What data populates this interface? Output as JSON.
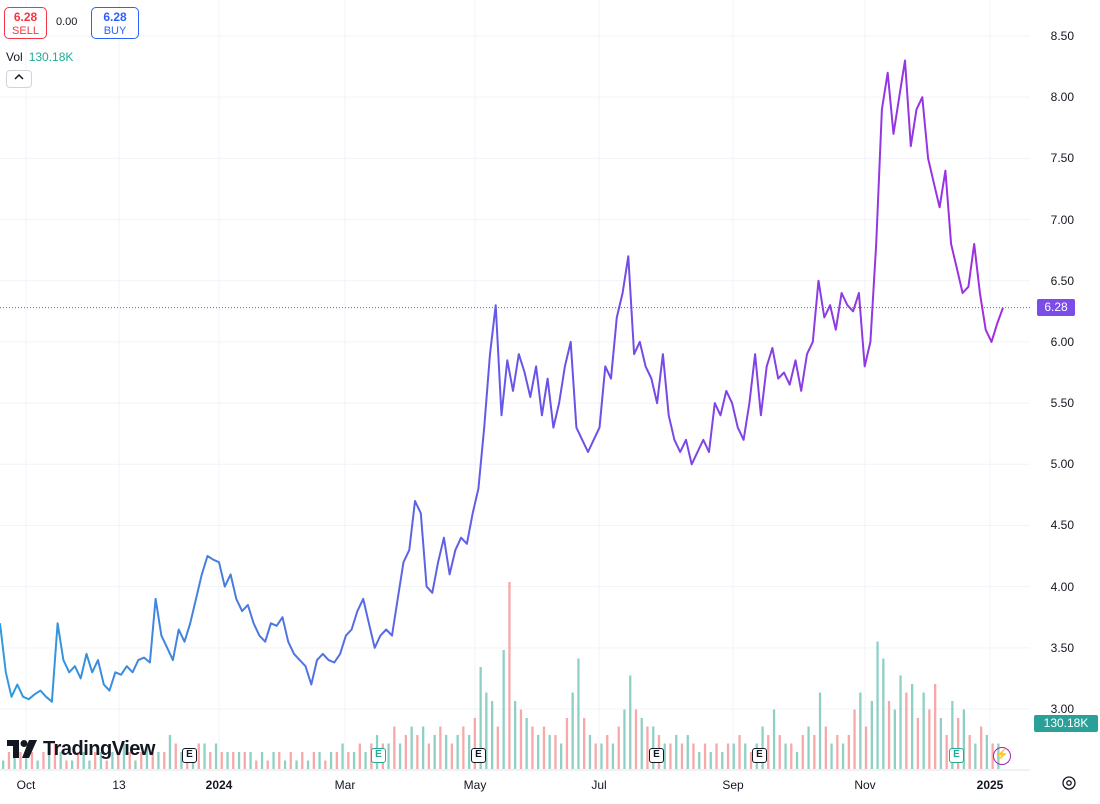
{
  "header": {
    "sell_price": "6.28",
    "sell_label": "SELL",
    "spread": "0.00",
    "buy_price": "6.28",
    "buy_label": "BUY"
  },
  "volume_legend": {
    "label": "Vol",
    "value": "130.18K"
  },
  "collapse_icon": "chevron-up-icon",
  "price_axis": {
    "ticks": [
      "8.50",
      "8.00",
      "7.50",
      "7.00",
      "6.50",
      "6.00",
      "5.50",
      "5.00",
      "4.50",
      "4.00",
      "3.50",
      "3.00"
    ]
  },
  "last_price_label": "6.28",
  "volume_label": "130.18K",
  "time_axis": {
    "ticks": [
      "Oct",
      "13",
      "2024",
      "Mar",
      "May",
      "Jul",
      "Sep",
      "Nov",
      "2025"
    ],
    "bold": [
      "2024",
      "2025"
    ]
  },
  "logo": {
    "text": "TradingView"
  },
  "event_markers": {
    "earnings": "E"
  },
  "colors": {
    "line_start": "#2f9bdc",
    "line_mid": "#6a52e8",
    "line_end": "#a12ee0",
    "vol_up": "#8fd0c5",
    "vol_down": "#f7a8a8",
    "last_price": "#7b4ce8",
    "grid": "#f0f3fa"
  },
  "chart_data": {
    "type": "line",
    "ylim": [
      2.5,
      8.6
    ],
    "last_value": 6.28,
    "series": [
      {
        "values": [
          3.7,
          3.3,
          3.1,
          3.2,
          3.1,
          3.08,
          3.12,
          3.15,
          3.1,
          3.06,
          3.7,
          3.4,
          3.3,
          3.35,
          3.25,
          3.45,
          3.3,
          3.4,
          3.2,
          3.15,
          3.3,
          3.28,
          3.35,
          3.3,
          3.4,
          3.42,
          3.38,
          3.9,
          3.6,
          3.5,
          3.4,
          3.65,
          3.55,
          3.7,
          3.9,
          4.1,
          4.25,
          4.22,
          4.2,
          4.0,
          4.1,
          3.9,
          3.8,
          3.85,
          3.7,
          3.6,
          3.55,
          3.7,
          3.68,
          3.75,
          3.55,
          3.45,
          3.4,
          3.35,
          3.2,
          3.4,
          3.45,
          3.4,
          3.38,
          3.45,
          3.6,
          3.65,
          3.8,
          3.9,
          3.7,
          3.5,
          3.6,
          3.65,
          3.6,
          3.9,
          4.2,
          4.3,
          4.7,
          4.6,
          4.0,
          3.95,
          4.2,
          4.4,
          4.1,
          4.3,
          4.4,
          4.35,
          4.6,
          4.8,
          5.3,
          5.9,
          6.3,
          5.4,
          5.85,
          5.6,
          5.9,
          5.75,
          5.55,
          5.8,
          5.4,
          5.7,
          5.3,
          5.5,
          5.8,
          6.0,
          5.3,
          5.2,
          5.1,
          5.2,
          5.3,
          5.8,
          5.7,
          6.2,
          6.4,
          6.7,
          5.9,
          6.0,
          5.8,
          5.7,
          5.5,
          5.9,
          5.4,
          5.2,
          5.1,
          5.2,
          5.0,
          5.1,
          5.2,
          5.1,
          5.5,
          5.4,
          5.6,
          5.5,
          5.3,
          5.2,
          5.5,
          5.9,
          5.4,
          5.8,
          5.95,
          5.7,
          5.75,
          5.65,
          5.85,
          5.6,
          5.9,
          6.0,
          6.5,
          6.2,
          6.3,
          6.1,
          6.4,
          6.3,
          6.25,
          6.4,
          5.8,
          6.0,
          6.8,
          7.9,
          8.2,
          7.7,
          8.0,
          8.3,
          7.6,
          7.9,
          8.0,
          7.5,
          7.3,
          7.1,
          7.4,
          6.8,
          6.6,
          6.4,
          6.45,
          6.8,
          6.4,
          6.1,
          6.0,
          6.15,
          6.28
        ]
      }
    ],
    "volume": [
      [
        1,
        1
      ],
      [
        2,
        0
      ],
      [
        3,
        1
      ],
      [
        2,
        0
      ],
      [
        2,
        1
      ],
      [
        2,
        0
      ],
      [
        1,
        1
      ],
      [
        2,
        0
      ],
      [
        2,
        1
      ],
      [
        3,
        0
      ],
      [
        2,
        1
      ],
      [
        1,
        0
      ],
      [
        1,
        1
      ],
      [
        2,
        0
      ],
      [
        2,
        1
      ],
      [
        1,
        1
      ],
      [
        2,
        0
      ],
      [
        2,
        1
      ],
      [
        1,
        0
      ],
      [
        2,
        1
      ],
      [
        2,
        0
      ],
      [
        3,
        1
      ],
      [
        2,
        0
      ],
      [
        1,
        1
      ],
      [
        2,
        0
      ],
      [
        3,
        1
      ],
      [
        2,
        0
      ],
      [
        2,
        1
      ],
      [
        2,
        0
      ],
      [
        4,
        1
      ],
      [
        3,
        0
      ],
      [
        2,
        1
      ],
      [
        2,
        0
      ],
      [
        2,
        1
      ],
      [
        3,
        0
      ],
      [
        3,
        1
      ],
      [
        2,
        0
      ],
      [
        3,
        1
      ],
      [
        2,
        0
      ],
      [
        2,
        1
      ],
      [
        2,
        0
      ],
      [
        2,
        1
      ],
      [
        2,
        0
      ],
      [
        2,
        1
      ],
      [
        1,
        0
      ],
      [
        2,
        1
      ],
      [
        1,
        0
      ],
      [
        2,
        1
      ],
      [
        2,
        0
      ],
      [
        1,
        1
      ],
      [
        2,
        0
      ],
      [
        1,
        1
      ],
      [
        2,
        0
      ],
      [
        1,
        1
      ],
      [
        2,
        0
      ],
      [
        2,
        1
      ],
      [
        1,
        0
      ],
      [
        2,
        1
      ],
      [
        2,
        0
      ],
      [
        3,
        1
      ],
      [
        2,
        0
      ],
      [
        2,
        1
      ],
      [
        3,
        0
      ],
      [
        2,
        1
      ],
      [
        3,
        0
      ],
      [
        4,
        1
      ],
      [
        3,
        0
      ],
      [
        3,
        1
      ],
      [
        5,
        0
      ],
      [
        3,
        1
      ],
      [
        4,
        0
      ],
      [
        5,
        1
      ],
      [
        4,
        0
      ],
      [
        5,
        1
      ],
      [
        3,
        0
      ],
      [
        4,
        1
      ],
      [
        5,
        0
      ],
      [
        4,
        1
      ],
      [
        3,
        0
      ],
      [
        4,
        1
      ],
      [
        5,
        0
      ],
      [
        4,
        1
      ],
      [
        6,
        0
      ],
      [
        12,
        1
      ],
      [
        9,
        1
      ],
      [
        8,
        1
      ],
      [
        5,
        0
      ],
      [
        14,
        1
      ],
      [
        22,
        0
      ],
      [
        8,
        1
      ],
      [
        7,
        0
      ],
      [
        6,
        1
      ],
      [
        5,
        0
      ],
      [
        4,
        1
      ],
      [
        5,
        0
      ],
      [
        4,
        1
      ],
      [
        4,
        0
      ],
      [
        3,
        1
      ],
      [
        6,
        0
      ],
      [
        9,
        1
      ],
      [
        13,
        1
      ],
      [
        6,
        0
      ],
      [
        4,
        1
      ],
      [
        3,
        0
      ],
      [
        3,
        1
      ],
      [
        4,
        0
      ],
      [
        3,
        1
      ],
      [
        5,
        0
      ],
      [
        7,
        1
      ],
      [
        11,
        1
      ],
      [
        7,
        0
      ],
      [
        6,
        1
      ],
      [
        5,
        0
      ],
      [
        5,
        1
      ],
      [
        4,
        0
      ],
      [
        3,
        1
      ],
      [
        3,
        0
      ],
      [
        4,
        1
      ],
      [
        3,
        0
      ],
      [
        4,
        1
      ],
      [
        3,
        0
      ],
      [
        2,
        1
      ],
      [
        3,
        0
      ],
      [
        2,
        1
      ],
      [
        3,
        0
      ],
      [
        2,
        1
      ],
      [
        3,
        0
      ],
      [
        3,
        1
      ],
      [
        4,
        0
      ],
      [
        3,
        1
      ],
      [
        2,
        0
      ],
      [
        3,
        1
      ],
      [
        5,
        1
      ],
      [
        4,
        0
      ],
      [
        7,
        1
      ],
      [
        4,
        0
      ],
      [
        3,
        1
      ],
      [
        3,
        0
      ],
      [
        2,
        1
      ],
      [
        4,
        0
      ],
      [
        5,
        1
      ],
      [
        4,
        0
      ],
      [
        9,
        1
      ],
      [
        5,
        0
      ],
      [
        3,
        1
      ],
      [
        4,
        0
      ],
      [
        3,
        1
      ],
      [
        4,
        0
      ],
      [
        7,
        0
      ],
      [
        9,
        1
      ],
      [
        5,
        0
      ],
      [
        8,
        1
      ],
      [
        15,
        1
      ],
      [
        13,
        1
      ],
      [
        8,
        0
      ],
      [
        7,
        1
      ],
      [
        11,
        1
      ],
      [
        9,
        0
      ],
      [
        10,
        1
      ],
      [
        6,
        0
      ],
      [
        9,
        1
      ],
      [
        7,
        0
      ],
      [
        10,
        0
      ],
      [
        6,
        1
      ],
      [
        4,
        0
      ],
      [
        8,
        1
      ],
      [
        6,
        0
      ],
      [
        7,
        1
      ],
      [
        4,
        0
      ],
      [
        3,
        1
      ],
      [
        5,
        0
      ],
      [
        4,
        1
      ],
      [
        3,
        0
      ],
      [
        3,
        1
      ]
    ]
  }
}
